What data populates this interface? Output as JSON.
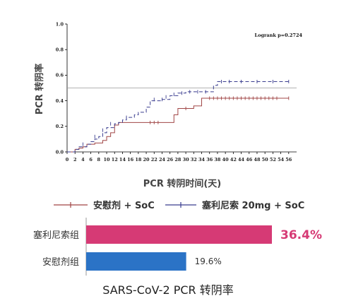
{
  "colors": {
    "seralutinib_line": "#3a3d8f",
    "placebo_line": "#a04545",
    "bar_highlight": "#d63a75",
    "bar_normal": "#2b73c6",
    "highlight_text": "#d63a75"
  },
  "chart_data": [
    {
      "type": "line",
      "title": "",
      "xlabel": "PCR 转阴时间(天)",
      "ylabel": "PCR 转阴率",
      "xlim": [
        0,
        58
      ],
      "ylim": [
        0,
        1.0
      ],
      "x_ticks": [
        0,
        2,
        4,
        6,
        8,
        10,
        12,
        14,
        16,
        18,
        20,
        22,
        24,
        26,
        28,
        30,
        32,
        34,
        36,
        38,
        40,
        42,
        44,
        46,
        48,
        50,
        52,
        54,
        56
      ],
      "y_ticks": [
        "0.0",
        "0.2",
        "0.4",
        "0.6",
        "0.8",
        "1.0"
      ],
      "reference_line_y": 0.5,
      "annotation": "Logrank p=0.2724",
      "series": [
        {
          "name": "安慰剂 + SoC",
          "style": "solid",
          "color": "#a04545",
          "steps": [
            [
              0,
              0
            ],
            [
              1,
              0
            ],
            [
              2,
              0.02
            ],
            [
              3,
              0.03
            ],
            [
              4,
              0.04
            ],
            [
              5,
              0.06
            ],
            [
              7,
              0.07
            ],
            [
              9,
              0.09
            ],
            [
              10,
              0.12
            ],
            [
              11,
              0.15
            ],
            [
              12,
              0.21
            ],
            [
              13,
              0.23
            ],
            [
              26,
              0.23
            ],
            [
              27,
              0.29
            ],
            [
              28,
              0.34
            ],
            [
              32,
              0.36
            ],
            [
              34,
              0.42
            ],
            [
              40,
              0.42
            ],
            [
              56,
              0.42
            ]
          ],
          "censors": [
            [
              21,
              0.23
            ],
            [
              22,
              0.23
            ],
            [
              23,
              0.23
            ],
            [
              30,
              0.34
            ],
            [
              36,
              0.42
            ],
            [
              37,
              0.42
            ],
            [
              38,
              0.42
            ],
            [
              39,
              0.42
            ],
            [
              40,
              0.42
            ],
            [
              41,
              0.42
            ],
            [
              42,
              0.42
            ],
            [
              43,
              0.42
            ],
            [
              44,
              0.42
            ],
            [
              45,
              0.42
            ],
            [
              46,
              0.42
            ],
            [
              47,
              0.42
            ],
            [
              48,
              0.42
            ],
            [
              49,
              0.42
            ],
            [
              50,
              0.42
            ],
            [
              51,
              0.42
            ],
            [
              52,
              0.42
            ],
            [
              53,
              0.42
            ],
            [
              56,
              0.42
            ]
          ]
        },
        {
          "name": "塞利尼索 20mg + SoC",
          "style": "dashed",
          "color": "#3a3d8f",
          "steps": [
            [
              0,
              0
            ],
            [
              2,
              0.02
            ],
            [
              3,
              0.04
            ],
            [
              5,
              0.06
            ],
            [
              6,
              0.08
            ],
            [
              7,
              0.1
            ],
            [
              8,
              0.12
            ],
            [
              9,
              0.15
            ],
            [
              10,
              0.19
            ],
            [
              12,
              0.22
            ],
            [
              13,
              0.23
            ],
            [
              14,
              0.25
            ],
            [
              15,
              0.27
            ],
            [
              17,
              0.29
            ],
            [
              18,
              0.31
            ],
            [
              20,
              0.35
            ],
            [
              21,
              0.4
            ],
            [
              24,
              0.41
            ],
            [
              26,
              0.44
            ],
            [
              28,
              0.46
            ],
            [
              30,
              0.47
            ],
            [
              36,
              0.47
            ],
            [
              37,
              0.52
            ],
            [
              38,
              0.55
            ],
            [
              56,
              0.55
            ]
          ],
          "censors": [
            [
              4,
              0.06
            ],
            [
              7,
              0.12
            ],
            [
              9,
              0.17
            ],
            [
              11,
              0.22
            ],
            [
              15,
              0.27
            ],
            [
              22,
              0.41
            ],
            [
              24,
              0.41
            ],
            [
              25,
              0.43
            ],
            [
              27,
              0.45
            ],
            [
              29,
              0.46
            ],
            [
              31,
              0.47
            ],
            [
              33,
              0.47
            ],
            [
              35,
              0.47
            ],
            [
              39,
              0.55
            ],
            [
              41,
              0.55
            ],
            [
              44,
              0.55
            ],
            [
              48,
              0.55
            ],
            [
              52,
              0.55
            ],
            [
              56,
              0.55
            ]
          ]
        }
      ]
    },
    {
      "type": "bar",
      "orientation": "horizontal",
      "title": "SARS-CoV-2 PCR 转阴率",
      "categories": [
        "塞利尼索组",
        "安慰剂组"
      ],
      "values": [
        36.4,
        19.6
      ],
      "value_labels": [
        "36.4%",
        "19.6%"
      ],
      "unit": "%",
      "colors": [
        "#d63a75",
        "#2b73c6"
      ]
    }
  ]
}
